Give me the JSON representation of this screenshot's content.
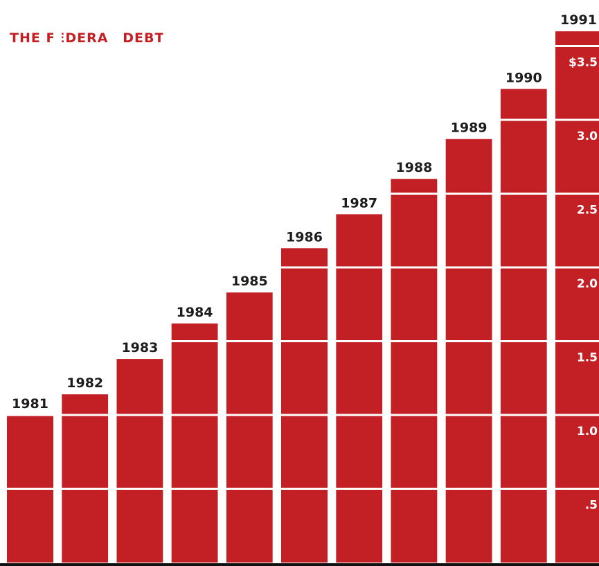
{
  "chart_data": {
    "type": "bar",
    "title": "THE FEDERAL DEBT",
    "categories": [
      "1981",
      "1982",
      "1983",
      "1984",
      "1985",
      "1986",
      "1987",
      "1988",
      "1989",
      "1990",
      "1991"
    ],
    "values": [
      1.0,
      1.14,
      1.38,
      1.62,
      1.83,
      2.13,
      2.36,
      2.6,
      2.87,
      3.21,
      3.6
    ],
    "unit": "trillion dollars",
    "ylim": [
      0,
      3.6
    ],
    "yticks": [
      {
        "value": 0.5,
        "label": ".5"
      },
      {
        "value": 1.0,
        "label": "1.0"
      },
      {
        "value": 1.5,
        "label": "1.5"
      },
      {
        "value": 2.0,
        "label": "2.0"
      },
      {
        "value": 2.5,
        "label": "2.5"
      },
      {
        "value": 3.0,
        "label": "3.0"
      },
      {
        "value": 3.5,
        "label": "$3.5"
      }
    ],
    "grid": true,
    "colors": {
      "bar": "#c32026",
      "title": "#c32026",
      "gridline": "#ffffff",
      "label": "#1c1c1c",
      "baseline": "#111111"
    }
  }
}
